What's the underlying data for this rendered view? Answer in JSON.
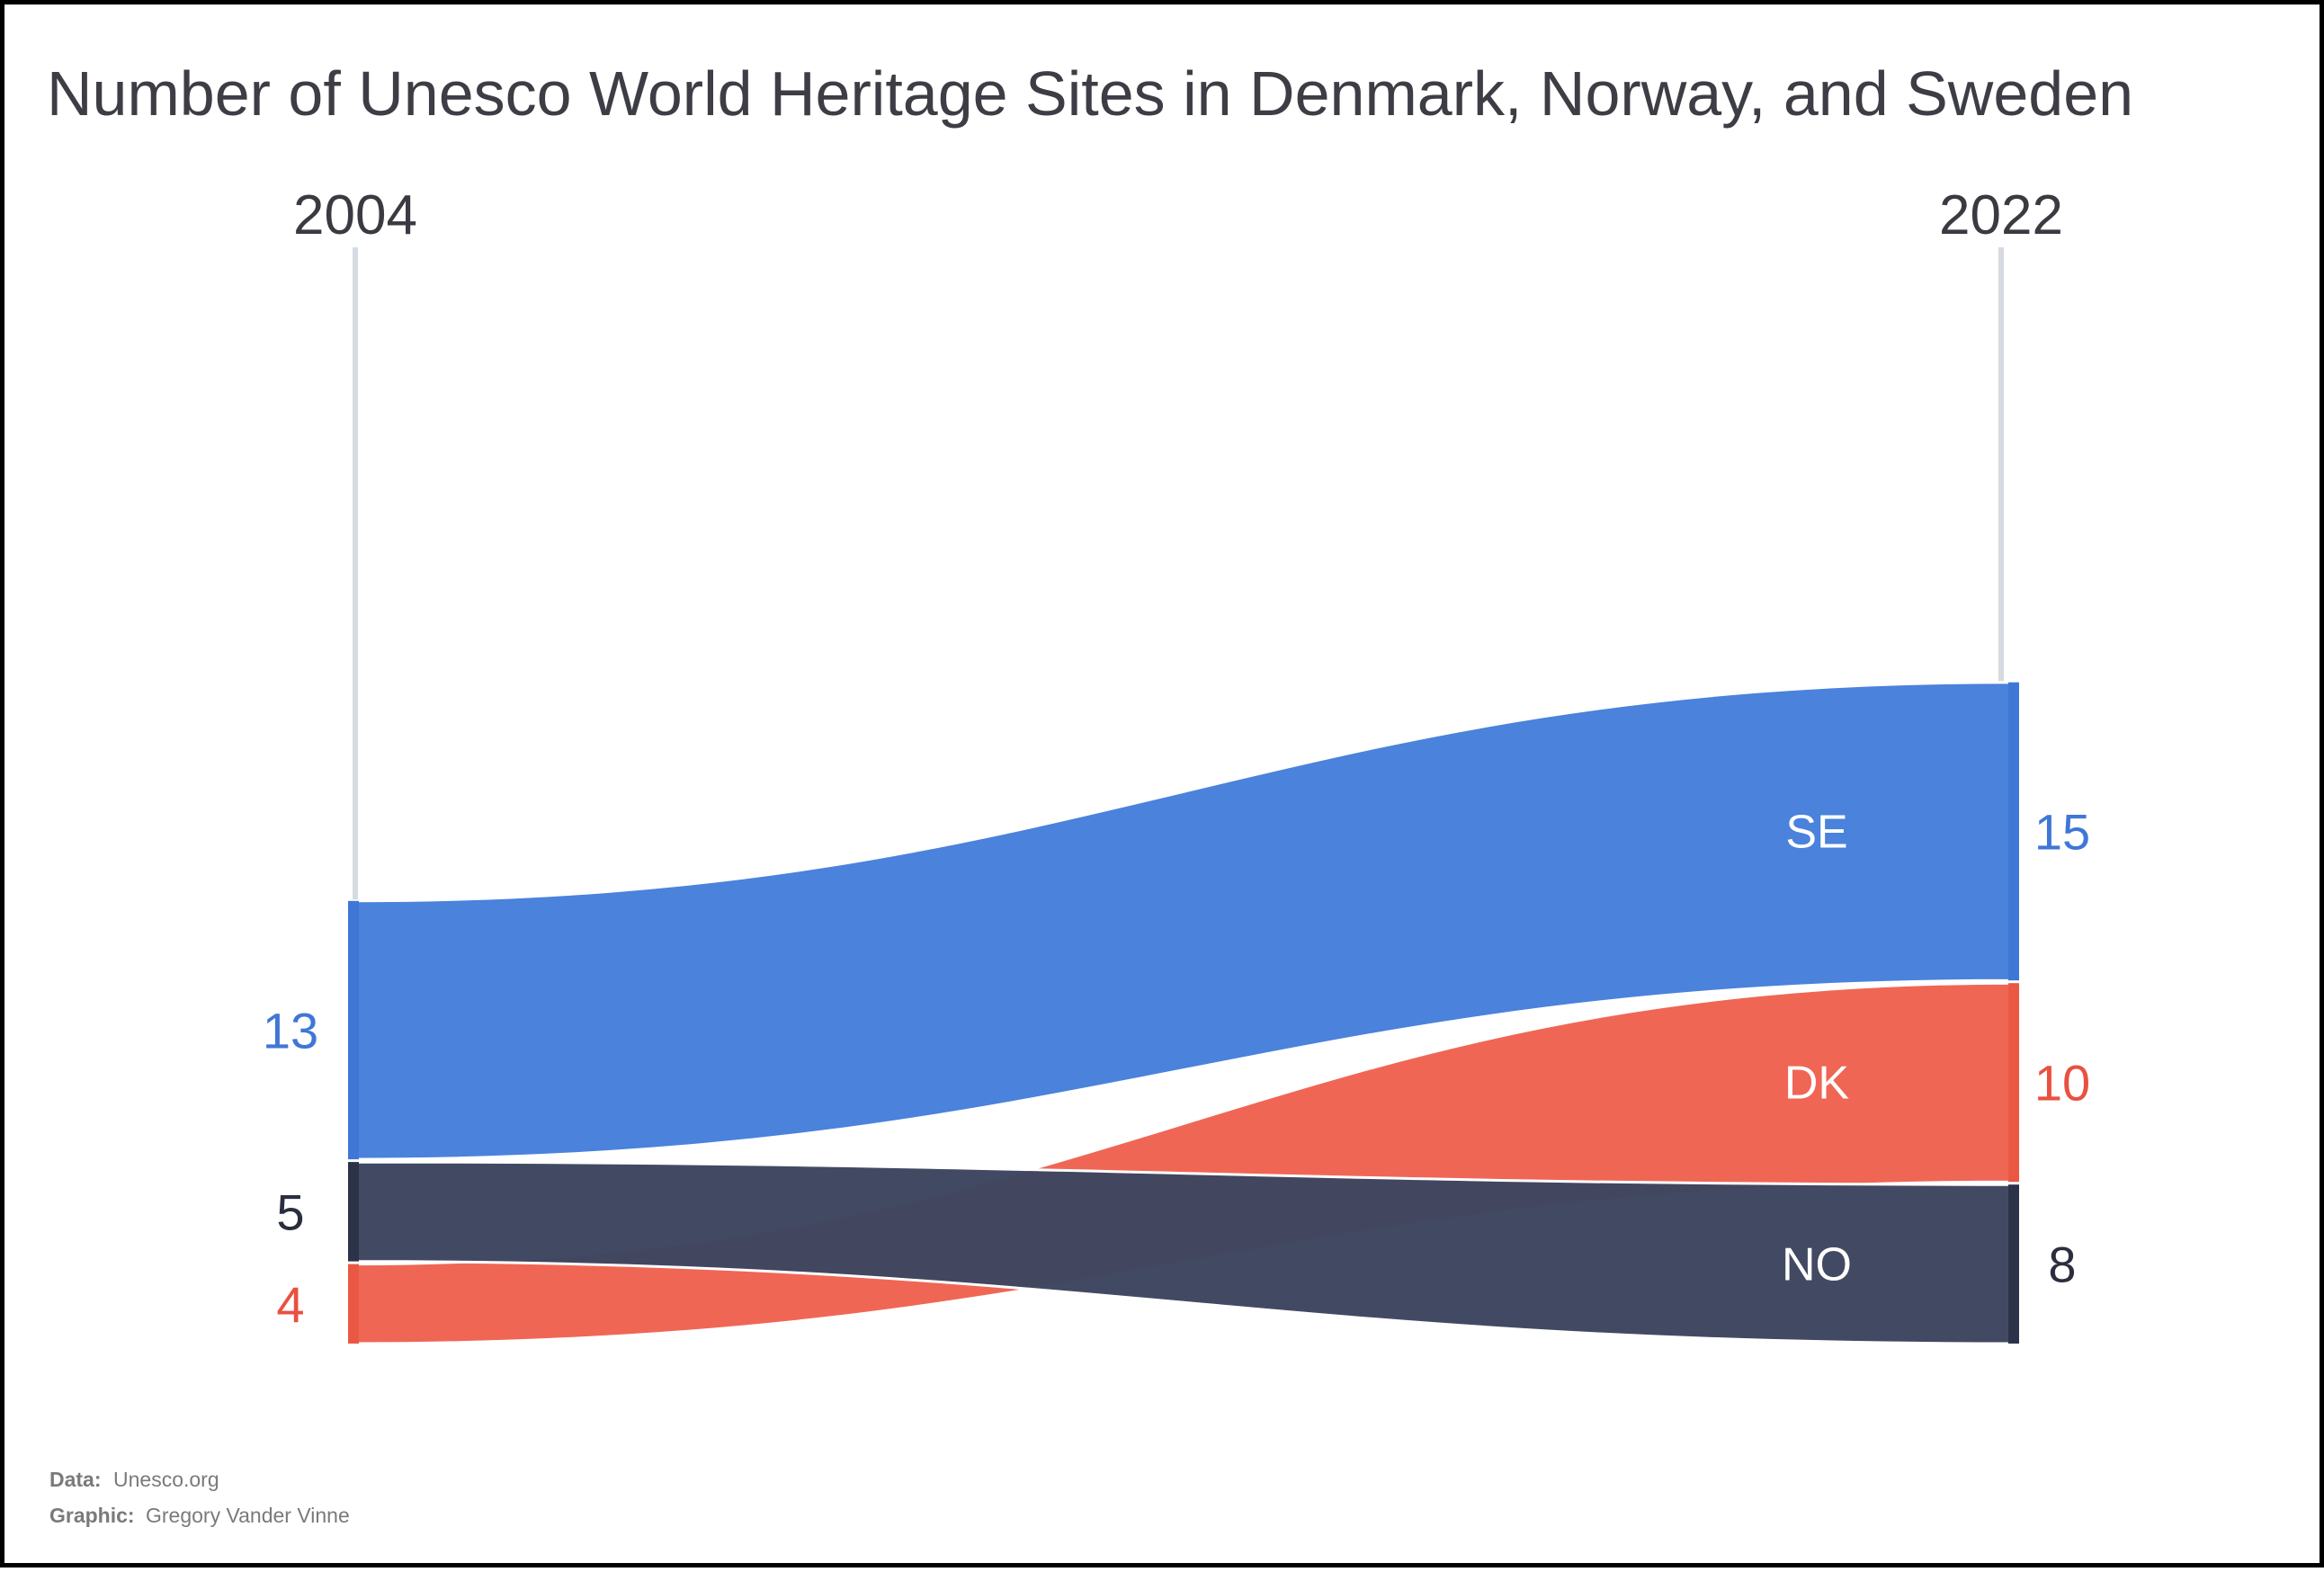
{
  "chart_data": {
    "type": "sankey",
    "title": "Number of Unesco World Heritage Sites in Denmark, Norway, and Sweden",
    "years": [
      "2004",
      "2022"
    ],
    "series": [
      {
        "code": "SE",
        "start": 13,
        "end": 15,
        "color": "#4a82dc",
        "bar_color": "#3f77d6"
      },
      {
        "code": "NO",
        "start": 5,
        "end": 8,
        "color": "#3e4660",
        "bar_color": "#2c3248"
      },
      {
        "code": "DK",
        "start": 4,
        "end": 10,
        "color": "#f06655",
        "bar_color": "#ea5844"
      }
    ],
    "start_order": [
      "SE",
      "NO",
      "DK"
    ],
    "end_order": [
      "SE",
      "DK",
      "NO"
    ],
    "value_label_colors": {
      "SE": "#3f77d6",
      "DK": "#ea5040",
      "NO": "#2a2e3e"
    }
  },
  "footer": {
    "data_key": "Data:",
    "data_value": "Unesco.org",
    "graphic_key": "Graphic:",
    "graphic_value": "Gregory Vander Vinne"
  }
}
